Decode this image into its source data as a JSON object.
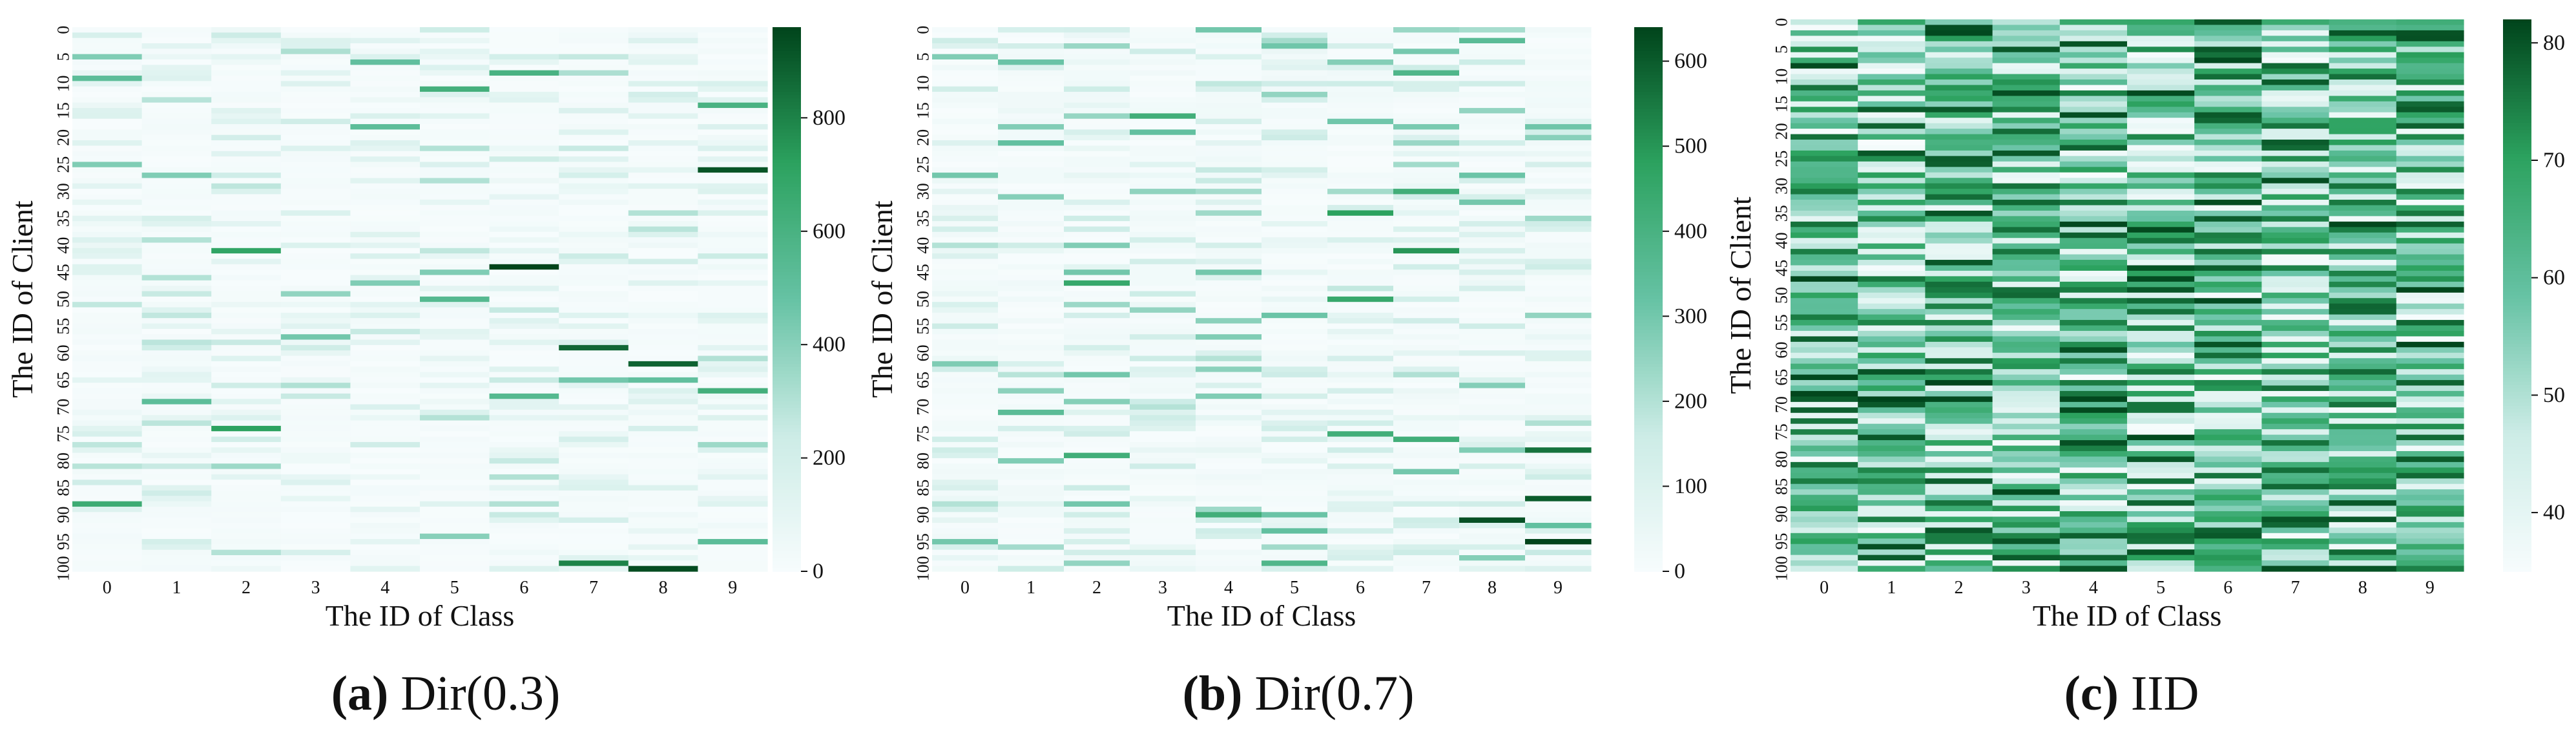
{
  "colors": {
    "low": "#f7fcfd",
    "mid1": "#ccece6",
    "mid2": "#66c2a4",
    "mid3": "#2ca25f",
    "high": "#00441b"
  },
  "captions": [
    {
      "letter": "(a)",
      "text": "Dir(0.3)"
    },
    {
      "letter": "(b)",
      "text": "Dir(0.7)"
    },
    {
      "letter": "(c)",
      "text": "IID"
    }
  ],
  "chart_data": [
    {
      "type": "heatmap",
      "title": "",
      "xlabel": "The ID of Class",
      "ylabel": "The ID of Client",
      "x_categories": [
        "0",
        "1",
        "2",
        "3",
        "4",
        "5",
        "6",
        "7",
        "8",
        "9"
      ],
      "y_ticks": [
        "0",
        "5",
        "10",
        "15",
        "20",
        "25",
        "30",
        "35",
        "40",
        "45",
        "50",
        "55",
        "60",
        "65",
        "70",
        "75",
        "80",
        "85",
        "90",
        "95",
        "100"
      ],
      "n_clients": 101,
      "colorbar": {
        "min": 0,
        "max": 960,
        "ticks": [
          0,
          200,
          400,
          600,
          800
        ]
      },
      "highlights": [
        {
          "client": 1,
          "class": 0,
          "value": 180
        },
        {
          "client": 5,
          "class": 0,
          "value": 420
        },
        {
          "client": 9,
          "class": 0,
          "value": 520
        },
        {
          "client": 25,
          "class": 0,
          "value": 420
        },
        {
          "client": 88,
          "class": 0,
          "value": 650
        },
        {
          "client": 84,
          "class": 0,
          "value": 220
        },
        {
          "client": 27,
          "class": 1,
          "value": 420
        },
        {
          "client": 39,
          "class": 1,
          "value": 300
        },
        {
          "client": 46,
          "class": 1,
          "value": 300
        },
        {
          "client": 69,
          "class": 1,
          "value": 520
        },
        {
          "client": 81,
          "class": 1,
          "value": 250
        },
        {
          "client": 86,
          "class": 1,
          "value": 220
        },
        {
          "client": 41,
          "class": 2,
          "value": 700
        },
        {
          "client": 58,
          "class": 2,
          "value": 250
        },
        {
          "client": 74,
          "class": 2,
          "value": 720
        },
        {
          "client": 81,
          "class": 2,
          "value": 350
        },
        {
          "client": 97,
          "class": 2,
          "value": 300
        },
        {
          "client": 49,
          "class": 3,
          "value": 380
        },
        {
          "client": 57,
          "class": 3,
          "value": 450
        },
        {
          "client": 68,
          "class": 3,
          "value": 250
        },
        {
          "client": 6,
          "class": 4,
          "value": 500
        },
        {
          "client": 18,
          "class": 4,
          "value": 520
        },
        {
          "client": 47,
          "class": 4,
          "value": 420
        },
        {
          "client": 77,
          "class": 4,
          "value": 220
        },
        {
          "client": 11,
          "class": 5,
          "value": 620
        },
        {
          "client": 22,
          "class": 5,
          "value": 300
        },
        {
          "client": 45,
          "class": 5,
          "value": 420
        },
        {
          "client": 50,
          "class": 5,
          "value": 550
        },
        {
          "client": 94,
          "class": 5,
          "value": 400
        },
        {
          "client": 8,
          "class": 6,
          "value": 600
        },
        {
          "client": 44,
          "class": 6,
          "value": 960
        },
        {
          "client": 68,
          "class": 6,
          "value": 550
        },
        {
          "client": 90,
          "class": 6,
          "value": 250
        },
        {
          "client": 59,
          "class": 7,
          "value": 870
        },
        {
          "client": 65,
          "class": 7,
          "value": 450
        },
        {
          "client": 99,
          "class": 7,
          "value": 800
        },
        {
          "client": 22,
          "class": 7,
          "value": 250
        },
        {
          "client": 62,
          "class": 8,
          "value": 880
        },
        {
          "client": 65,
          "class": 8,
          "value": 500
        },
        {
          "client": 100,
          "class": 8,
          "value": 940
        },
        {
          "client": 34,
          "class": 8,
          "value": 300
        },
        {
          "client": 14,
          "class": 9,
          "value": 600
        },
        {
          "client": 26,
          "class": 9,
          "value": 920
        },
        {
          "client": 67,
          "class": 9,
          "value": 620
        },
        {
          "client": 77,
          "class": 9,
          "value": 350
        },
        {
          "client": 95,
          "class": 9,
          "value": 520
        }
      ]
    },
    {
      "type": "heatmap",
      "title": "",
      "xlabel": "The ID of Class",
      "ylabel": "The ID of Client",
      "x_categories": [
        "0",
        "1",
        "2",
        "3",
        "4",
        "5",
        "6",
        "7",
        "8",
        "9"
      ],
      "y_ticks": [
        "0",
        "5",
        "10",
        "15",
        "20",
        "25",
        "30",
        "35",
        "40",
        "45",
        "50",
        "55",
        "60",
        "65",
        "70",
        "75",
        "80",
        "85",
        "90",
        "95",
        "100"
      ],
      "n_clients": 101,
      "colorbar": {
        "min": 0,
        "max": 640,
        "ticks": [
          0,
          100,
          200,
          300,
          400,
          500,
          600
        ]
      },
      "highlights": [
        {
          "client": 5,
          "class": 0,
          "value": 280
        },
        {
          "client": 27,
          "class": 0,
          "value": 300
        },
        {
          "client": 40,
          "class": 0,
          "value": 200
        },
        {
          "client": 95,
          "class": 0,
          "value": 300
        },
        {
          "client": 88,
          "class": 0,
          "value": 200
        },
        {
          "client": 21,
          "class": 1,
          "value": 330
        },
        {
          "client": 71,
          "class": 1,
          "value": 350
        },
        {
          "client": 80,
          "class": 1,
          "value": 280
        },
        {
          "client": 45,
          "class": 2,
          "value": 300
        },
        {
          "client": 47,
          "class": 2,
          "value": 450
        },
        {
          "client": 64,
          "class": 2,
          "value": 300
        },
        {
          "client": 79,
          "class": 2,
          "value": 420
        },
        {
          "client": 88,
          "class": 2,
          "value": 300
        },
        {
          "client": 16,
          "class": 3,
          "value": 420
        },
        {
          "client": 19,
          "class": 3,
          "value": 330
        },
        {
          "client": 52,
          "class": 3,
          "value": 250
        },
        {
          "client": 0,
          "class": 4,
          "value": 300
        },
        {
          "client": 45,
          "class": 4,
          "value": 300
        },
        {
          "client": 68,
          "class": 4,
          "value": 280
        },
        {
          "client": 90,
          "class": 4,
          "value": 420
        },
        {
          "client": 57,
          "class": 4,
          "value": 280
        },
        {
          "client": 12,
          "class": 5,
          "value": 250
        },
        {
          "client": 93,
          "class": 5,
          "value": 330
        },
        {
          "client": 99,
          "class": 5,
          "value": 380
        },
        {
          "client": 34,
          "class": 6,
          "value": 480
        },
        {
          "client": 50,
          "class": 6,
          "value": 450
        },
        {
          "client": 75,
          "class": 6,
          "value": 420
        },
        {
          "client": 8,
          "class": 7,
          "value": 380
        },
        {
          "client": 30,
          "class": 7,
          "value": 420
        },
        {
          "client": 41,
          "class": 7,
          "value": 500
        },
        {
          "client": 76,
          "class": 7,
          "value": 420
        },
        {
          "client": 82,
          "class": 7,
          "value": 300
        },
        {
          "client": 2,
          "class": 8,
          "value": 350
        },
        {
          "client": 32,
          "class": 8,
          "value": 300
        },
        {
          "client": 91,
          "class": 8,
          "value": 620
        },
        {
          "client": 78,
          "class": 8,
          "value": 280
        },
        {
          "client": 78,
          "class": 9,
          "value": 560
        },
        {
          "client": 87,
          "class": 9,
          "value": 600
        },
        {
          "client": 92,
          "class": 9,
          "value": 330
        },
        {
          "client": 95,
          "class": 9,
          "value": 640
        },
        {
          "client": 53,
          "class": 9,
          "value": 250
        }
      ]
    },
    {
      "type": "heatmap",
      "title": "",
      "xlabel": "The ID of Class",
      "ylabel": "The ID of Client",
      "x_categories": [
        "0",
        "1",
        "2",
        "3",
        "4",
        "5",
        "6",
        "7",
        "8",
        "9"
      ],
      "y_ticks": [
        "0",
        "5",
        "10",
        "15",
        "20",
        "25",
        "30",
        "35",
        "40",
        "45",
        "50",
        "55",
        "60",
        "65",
        "70",
        "75",
        "80",
        "85",
        "90",
        "95",
        "100"
      ],
      "n_clients": 101,
      "colorbar": {
        "min": 35,
        "max": 82,
        "ticks": [
          40,
          50,
          60,
          70,
          80
        ]
      },
      "value_range": [
        35,
        82
      ]
    }
  ]
}
